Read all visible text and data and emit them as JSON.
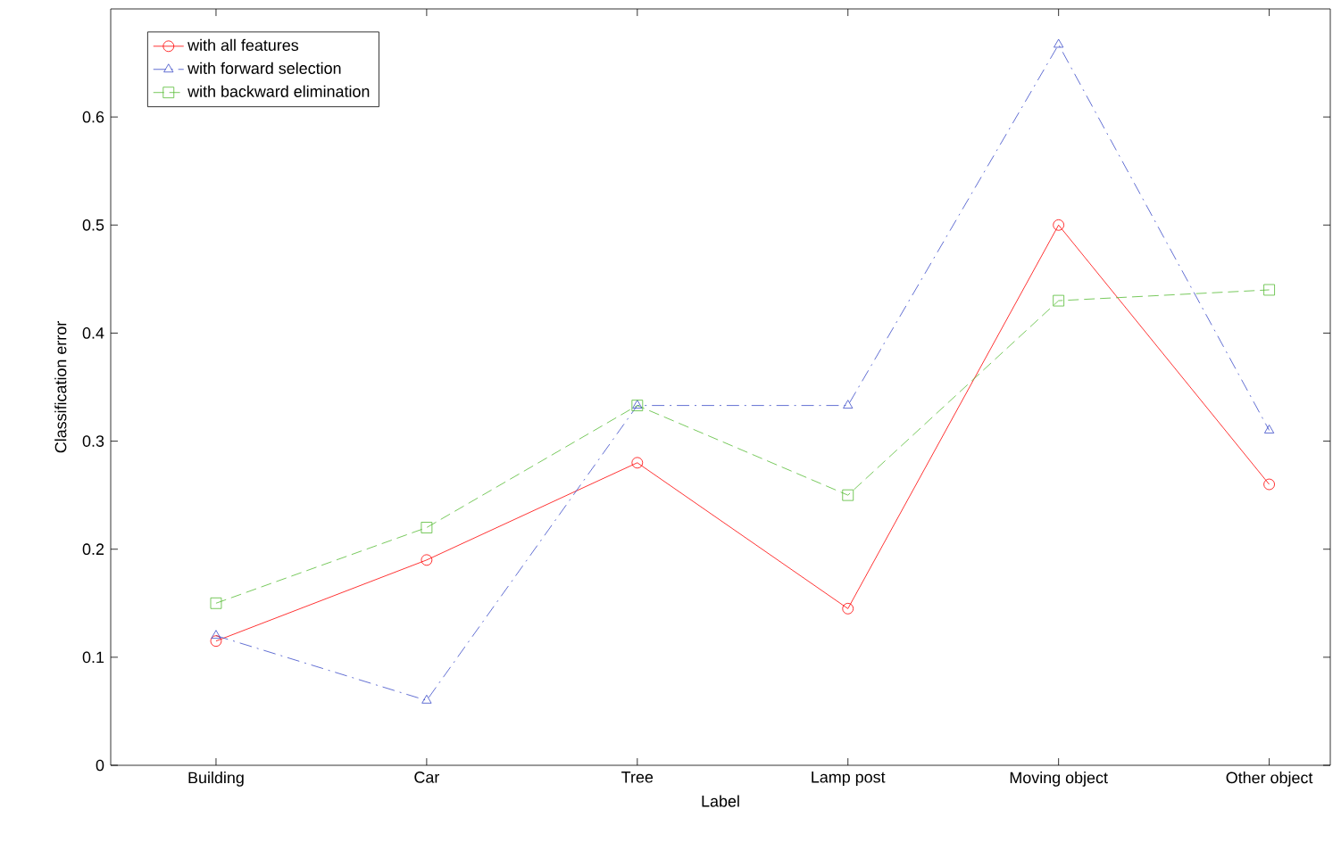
{
  "chart_data": {
    "type": "line",
    "xlabel": "Label",
    "ylabel": "Classification error",
    "categories": [
      "Building",
      "Car",
      "Tree",
      "Lamp post",
      "Moving object",
      "Other object"
    ],
    "series": [
      {
        "name": "with all features",
        "color": "#ff0000",
        "marker": "circle",
        "line_style": "solid",
        "values": [
          0.115,
          0.19,
          0.28,
          0.145,
          0.5,
          0.26
        ]
      },
      {
        "name": "with forward selection",
        "color": "#3b4bc8",
        "marker": "triangle",
        "line_style": "dashdot",
        "values": [
          0.12,
          0.06,
          0.333,
          0.333,
          0.667,
          0.31
        ]
      },
      {
        "name": "with backward elimination",
        "color": "#55bb33",
        "marker": "square",
        "line_style": "dashed",
        "values": [
          0.15,
          0.22,
          0.333,
          0.25,
          0.43,
          0.44
        ]
      }
    ],
    "ylim": [
      0,
      0.7
    ],
    "yticks": [
      0,
      0.1,
      0.2,
      0.3,
      0.4,
      0.5,
      0.6
    ],
    "grid": false,
    "legend": "top left"
  }
}
